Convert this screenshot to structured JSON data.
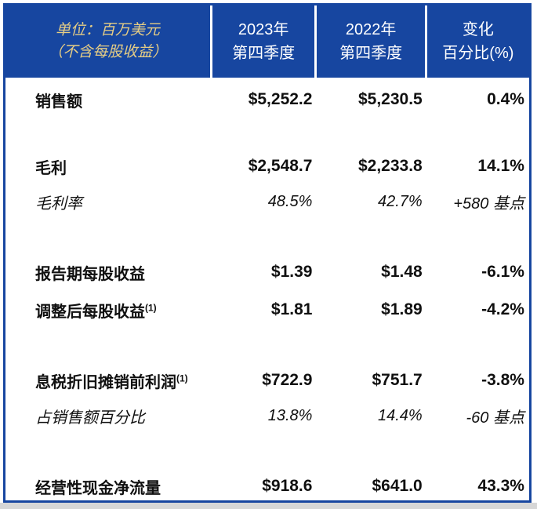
{
  "colors": {
    "header_blue": "#1746A0",
    "border_blue": "#1746A0",
    "header_text": "#FFFFFF",
    "unit_text_gold": "#E6CD85",
    "body_text": "#101010",
    "body_background": "#FFFFFF",
    "bottom_strip_gray": "#D7D7D7"
  },
  "chart_data": {
    "type": "table",
    "header": {
      "unit_line1": "单位：百万美元",
      "unit_line2": "（不含每股收益）",
      "cols": [
        {
          "line1": "2023年",
          "line2": "第四季度"
        },
        {
          "line1": "2022年",
          "line2": "第四季度"
        },
        {
          "line1": "变化",
          "line2": "百分比(%)"
        }
      ]
    },
    "rows": [
      {
        "label": "销售额",
        "sup": "",
        "q4_2023": "$5,252.2",
        "q4_2022": "$5,230.5",
        "change": "0.4%",
        "emphasis": "bold"
      },
      {
        "label": "毛利",
        "sup": "",
        "q4_2023": "$2,548.7",
        "q4_2022": "$2,233.8",
        "change": "14.1%",
        "emphasis": "bold"
      },
      {
        "label": "毛利率",
        "sup": "",
        "q4_2023": "48.5%",
        "q4_2022": "42.7%",
        "change": "+580 基点",
        "emphasis": "italic"
      },
      {
        "label": "报告期每股收益",
        "sup": "",
        "q4_2023": "$1.39",
        "q4_2022": "$1.48",
        "change": "-6.1%",
        "emphasis": "bold"
      },
      {
        "label": "调整后每股收益",
        "sup": "(1)",
        "q4_2023": "$1.81",
        "q4_2022": "$1.89",
        "change": "-4.2%",
        "emphasis": "bold"
      },
      {
        "label": "息税折旧摊销前利润",
        "sup": "(1)",
        "q4_2023": "$722.9",
        "q4_2022": "$751.7",
        "change": "-3.8%",
        "emphasis": "bold"
      },
      {
        "label": "占销售额百分比",
        "sup": "",
        "q4_2023": "13.8%",
        "q4_2022": "14.4%",
        "change": "-60 基点",
        "emphasis": "italic"
      },
      {
        "label": "经营性现金净流量",
        "sup": "",
        "q4_2023": "$918.6",
        "q4_2022": "$641.0",
        "change": "43.3%",
        "emphasis": "bold"
      }
    ]
  }
}
